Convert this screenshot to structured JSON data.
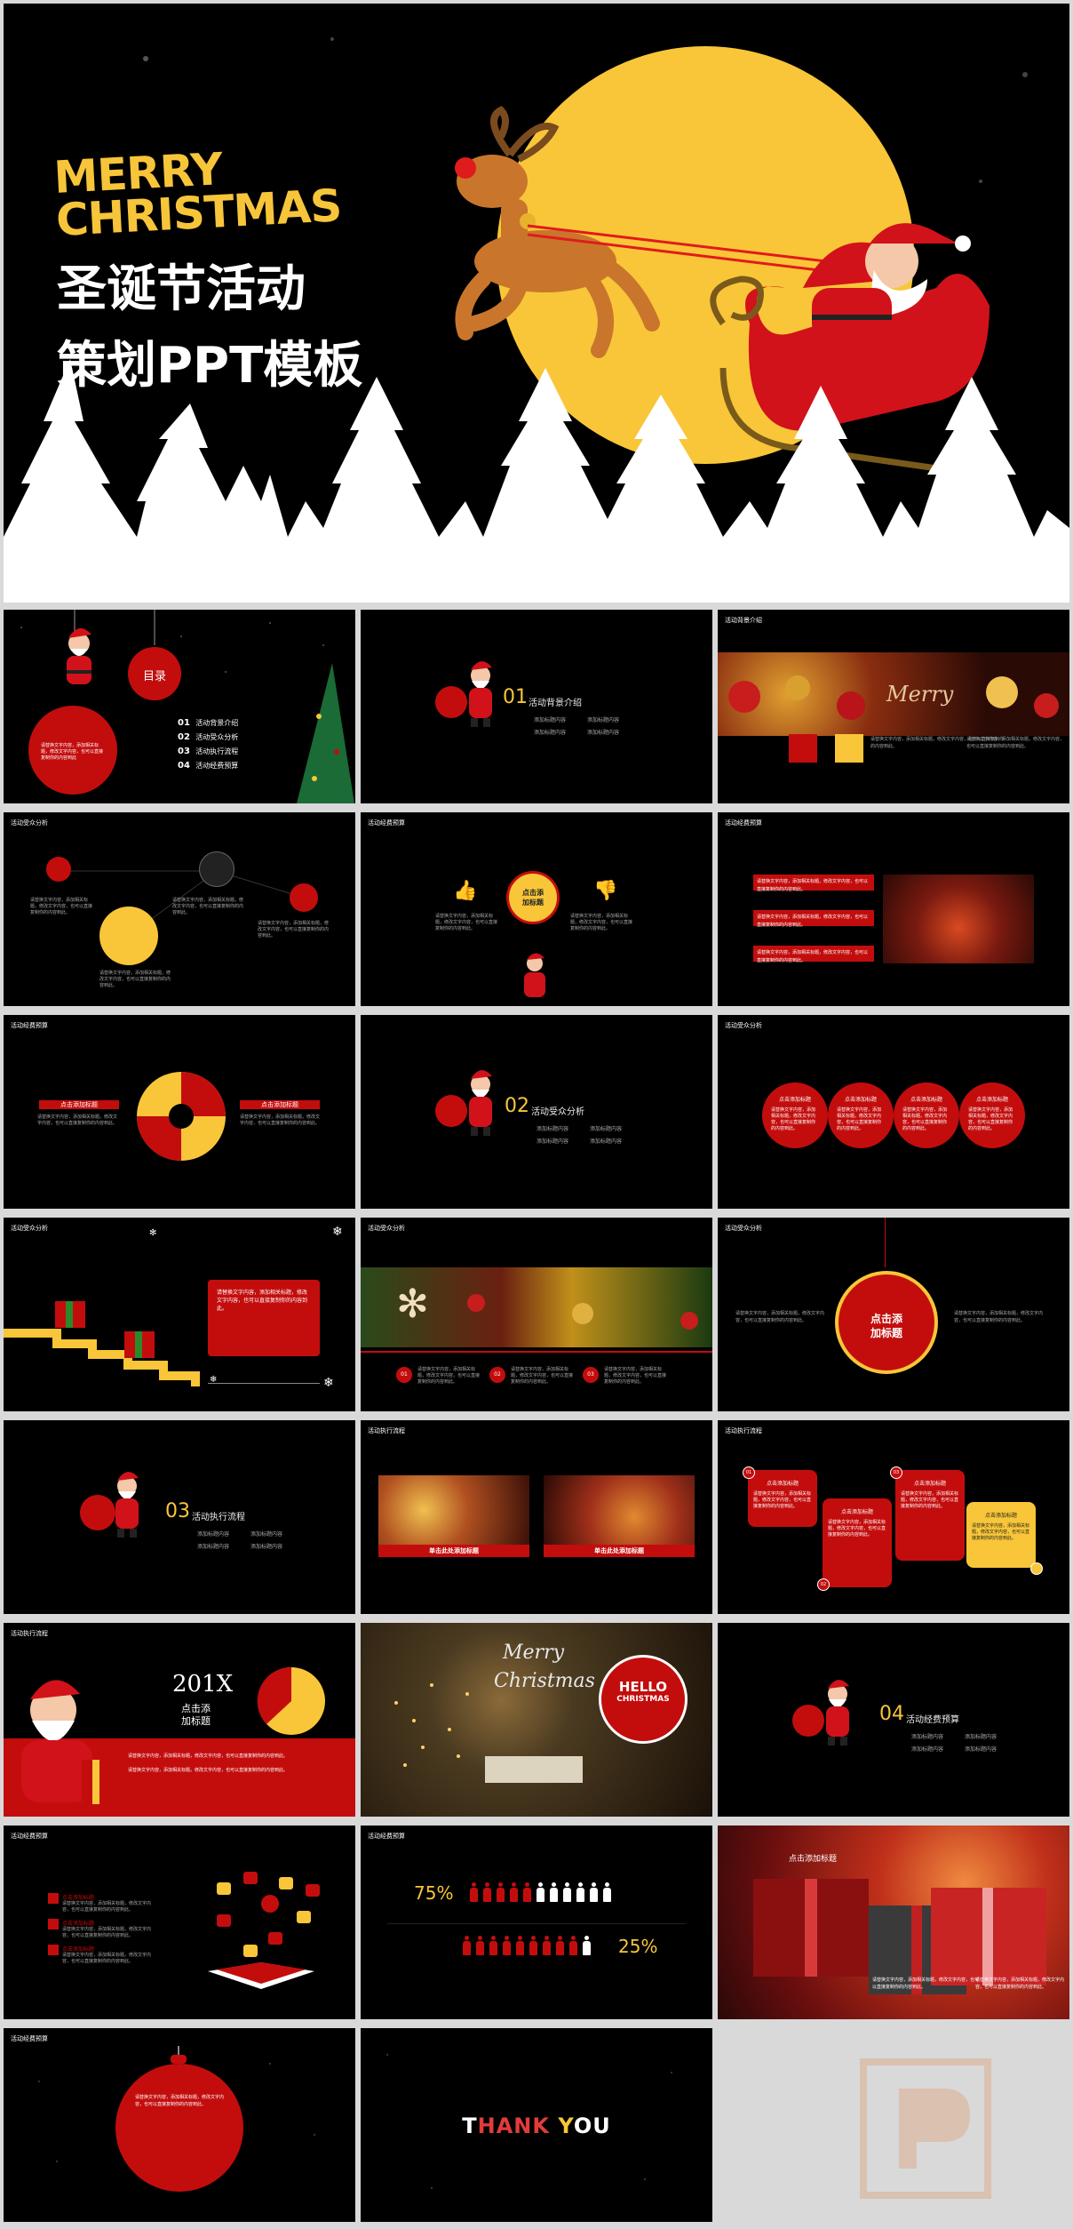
{
  "hero": {
    "merry_line1": "MERRY",
    "merry_line2": "CHRISTMAS",
    "title_line1": "圣诞节活动",
    "title_line2": "策划PPT模板"
  },
  "toc": {
    "heading": "目录",
    "items": [
      {
        "num": "01",
        "label": "活动背景介绍"
      },
      {
        "num": "02",
        "label": "活动受众分析"
      },
      {
        "num": "03",
        "label": "活动执行流程"
      },
      {
        "num": "04",
        "label": "活动经费预算"
      }
    ],
    "body": "请替换文字内容，添加相关标题，修改文字内容，也可以直接复制你的内容到此"
  },
  "sections": [
    {
      "num": "01",
      "title": "活动背景介绍",
      "sub": [
        "添加标题内容",
        "添加标题内容",
        "添加标题内容",
        "添加标题内容"
      ]
    },
    {
      "num": "02",
      "title": "活动受众分析",
      "sub": [
        "添加标题内容",
        "添加标题内容",
        "添加标题内容",
        "添加标题内容"
      ]
    },
    {
      "num": "03",
      "title": "活动执行流程",
      "sub": [
        "添加标题内容",
        "添加标题内容",
        "添加标题内容",
        "添加标题内容"
      ]
    },
    {
      "num": "04",
      "title": "活动经费预算",
      "sub": [
        "添加标题内容",
        "添加标题内容",
        "添加标题内容",
        "添加标题内容"
      ]
    }
  ],
  "labels": {
    "bg_intro": "活动背景介绍",
    "budget": "活动经费预算",
    "audience": "活动受众分析",
    "process": "活动执行流程"
  },
  "placeholder_text": "请替换文字内容，添加相关标题，修改文字内容，也可以直接复制你的内容到此。",
  "click_title": "点击添加标题",
  "click_title_short": "点击添\n加标题",
  "click_title_sub": "单击此处添加标题",
  "year": "201X",
  "hello": "HELLO",
  "christmas": "CHRISTMAS",
  "merry_script": "Merry",
  "christmas_script": "Christmas",
  "pct_a": "75%",
  "pct_b": "25%",
  "nums": [
    "01",
    "02",
    "03"
  ],
  "thanks": {
    "t": "T",
    "hank": "HANK ",
    "y": "Y",
    "ou": "OU"
  },
  "colors": {
    "red": "#c30d0d",
    "yellow": "#f8c638",
    "black": "#000000"
  }
}
